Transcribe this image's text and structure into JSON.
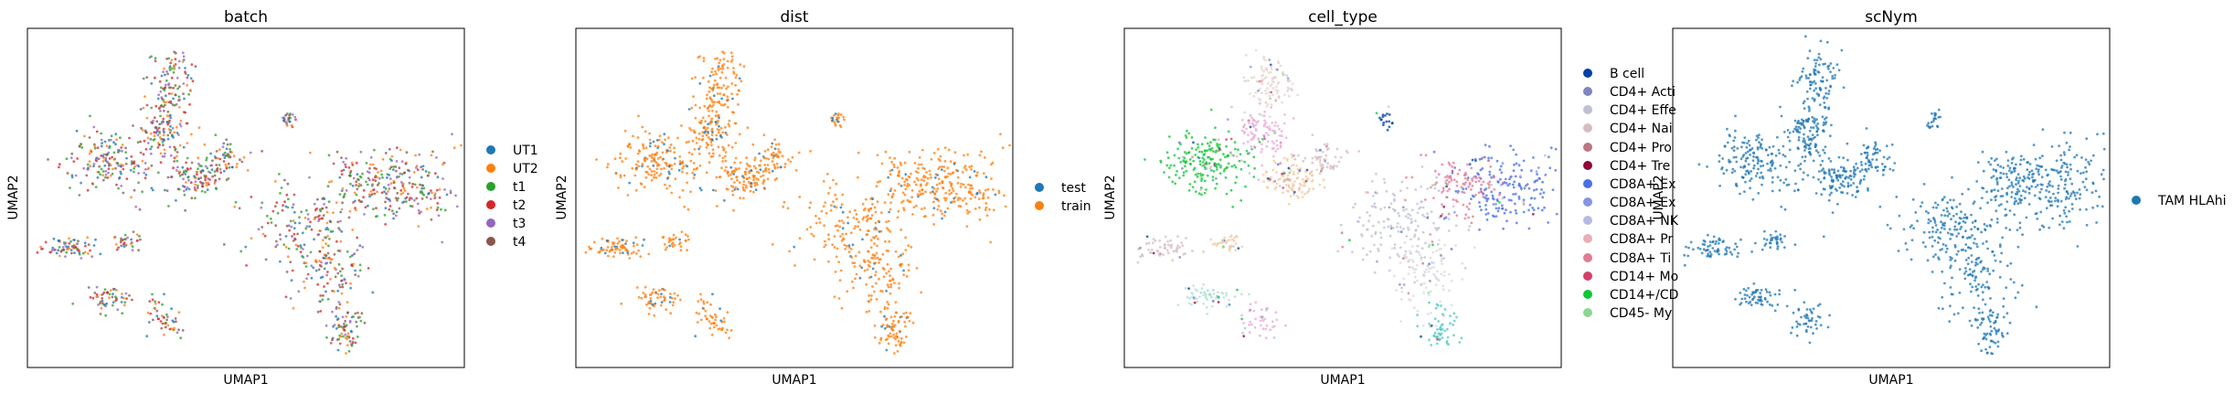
{
  "figure": {
    "xlabel": "UMAP1",
    "ylabel": "UMAP2"
  },
  "chart_data": [
    {
      "type": "scatter",
      "title": "batch",
      "xlabel": "UMAP1",
      "ylabel": "UMAP2",
      "grid": false,
      "legend_placement": "right outside",
      "legend": [
        {
          "name": "UT1",
          "color": "#1f77b4"
        },
        {
          "name": "UT2",
          "color": "#ff7f0e"
        },
        {
          "name": "t1",
          "color": "#2ca02c"
        },
        {
          "name": "t2",
          "color": "#d62728"
        },
        {
          "name": "t3",
          "color": "#9467bd"
        },
        {
          "name": "t4",
          "color": "#8c564b"
        }
      ],
      "coloring": "mixed"
    },
    {
      "type": "scatter",
      "title": "dist",
      "xlabel": "UMAP1",
      "ylabel": "UMAP2",
      "grid": false,
      "legend_placement": "right outside",
      "legend": [
        {
          "name": "test",
          "color": "#1f77b4"
        },
        {
          "name": "train",
          "color": "#ff7f0e"
        }
      ],
      "coloring": "dist"
    },
    {
      "type": "scatter",
      "title": "cell_type",
      "xlabel": "UMAP1",
      "ylabel": "UMAP2",
      "grid": false,
      "legend_placement": "right outside (clipped)",
      "legend": [
        {
          "name": "B cell",
          "color": "#023fa5"
        },
        {
          "name": "CD4+ Acti",
          "color": "#7d87b9"
        },
        {
          "name": "CD4+ Effe",
          "color": "#bec1d4"
        },
        {
          "name": "CD4+ Nai",
          "color": "#d6bcc0"
        },
        {
          "name": "CD4+ Pro",
          "color": "#bb7784"
        },
        {
          "name": "CD4+ Tre",
          "color": "#8e063b"
        },
        {
          "name": "CD8A+ Ex",
          "color": "#4a6fe3"
        },
        {
          "name": "CD8A+ Ex",
          "color": "#8595e1"
        },
        {
          "name": "CD8A+ NK",
          "color": "#b5bbe3"
        },
        {
          "name": "CD8A+ Pr",
          "color": "#e6afb9"
        },
        {
          "name": "CD8A+ Ti",
          "color": "#e07b91"
        },
        {
          "name": "CD14+ Mo",
          "color": "#d33f6a"
        },
        {
          "name": "CD14+/CD",
          "color": "#11c638"
        },
        {
          "name": "CD45- My",
          "color": "#8dd593"
        }
      ],
      "coloring": "celltype"
    },
    {
      "type": "scatter",
      "title": "scNym",
      "xlabel": "UMAP1",
      "ylabel": "UMAP2",
      "grid": false,
      "legend_placement": "right outside",
      "legend": [
        {
          "name": "TAM HLAhi",
          "color": "#1f77b4"
        }
      ],
      "coloring": "single"
    }
  ]
}
